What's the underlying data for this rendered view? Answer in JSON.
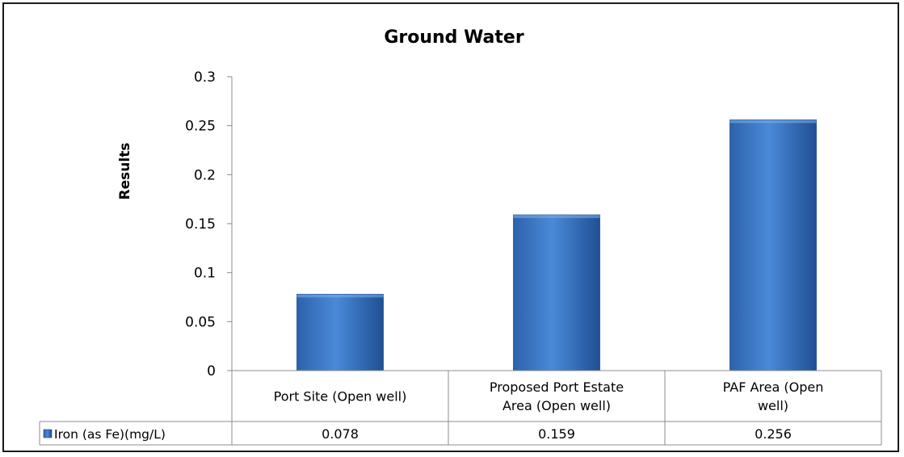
{
  "chart_data": {
    "type": "bar",
    "title": "Ground Water",
    "xlabel": "",
    "ylabel": "Results",
    "ylim": [
      0,
      0.3
    ],
    "yticks": [
      "0",
      "0.05",
      "0.1",
      "0.15",
      "0.2",
      "0.25",
      "0.3"
    ],
    "ytick_values": [
      0,
      0.05,
      0.1,
      0.15,
      0.2,
      0.25,
      0.3
    ],
    "grid": false,
    "legend": "data-table",
    "categories": [
      [
        "Port Site (Open well)"
      ],
      [
        "Proposed Port Estate",
        "Area (Open well)"
      ],
      [
        "PAF Area (Open",
        "well)"
      ]
    ],
    "series": [
      {
        "name": "Iron (as Fe)(mg/L)",
        "values": [
          0.078,
          0.159,
          0.256
        ],
        "value_labels": [
          "0.078",
          "0.159",
          "0.256"
        ],
        "color": "#3a78c8"
      }
    ]
  }
}
